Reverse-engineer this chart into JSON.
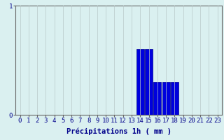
{
  "xlabel": "Précipitations 1h ( mm )",
  "hours": [
    0,
    1,
    2,
    3,
    4,
    5,
    6,
    7,
    8,
    9,
    10,
    11,
    12,
    13,
    14,
    15,
    16,
    17,
    18,
    19,
    20,
    21,
    22,
    23
  ],
  "values": [
    0,
    0,
    0,
    0,
    0,
    0,
    0,
    0,
    0,
    0,
    0,
    0,
    0,
    0,
    0.6,
    0.6,
    0.3,
    0.3,
    0.3,
    0,
    0,
    0,
    0,
    0
  ],
  "bar_color": "#0000dd",
  "bar_edge_color": "#00008B",
  "background_color": "#daf0f0",
  "grid_color": "#b8c8c8",
  "axis_color": "#666666",
  "text_color": "#00008B",
  "ylim": [
    0,
    1.0
  ],
  "yticks": [
    0,
    1
  ],
  "tick_fontsize": 6.5,
  "xlabel_fontsize": 7.5
}
